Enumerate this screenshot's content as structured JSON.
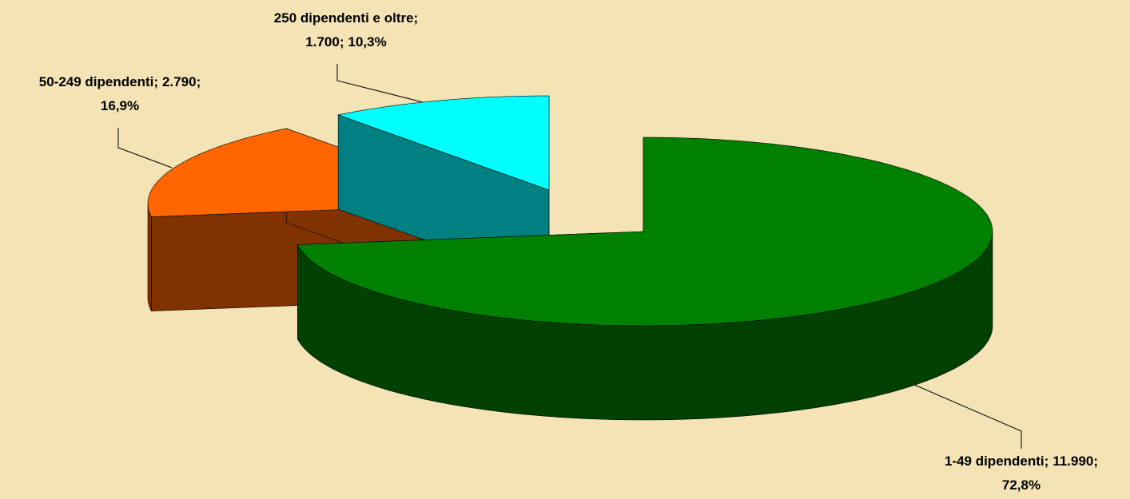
{
  "chart_data": {
    "type": "pie3d",
    "categories": [
      "1-49 dipendenti",
      "50-249 dipendenti",
      "250 dipendenti e oltre"
    ],
    "values": [
      11990,
      2790,
      1700
    ],
    "value_labels": [
      "11.990",
      "2.790",
      "1.700"
    ],
    "percentages": [
      72.8,
      16.9,
      10.3
    ],
    "percentage_labels": [
      "72,8%",
      "16,9%",
      "10,3%"
    ],
    "label_separator": ";",
    "colors": [
      "#008000",
      "#ff6600",
      "#00ffff"
    ],
    "side_colors": [
      "#004000",
      "#803300",
      "#008080"
    ]
  }
}
